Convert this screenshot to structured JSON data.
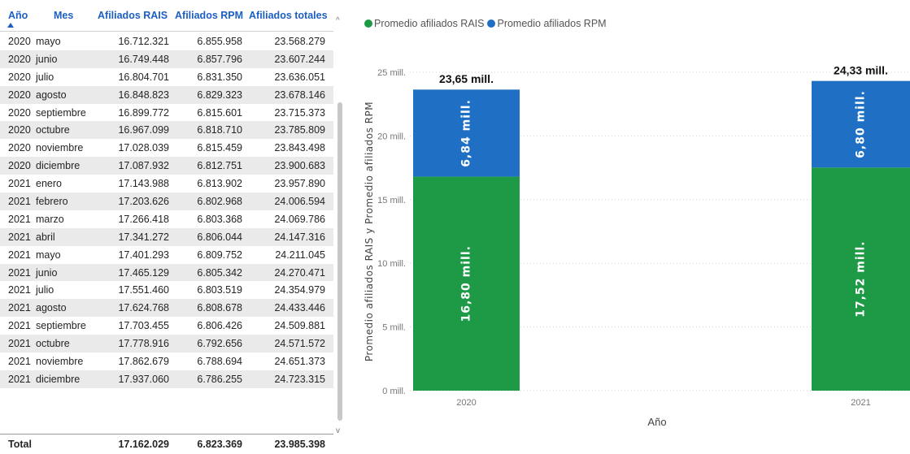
{
  "table": {
    "headers": {
      "year": "Año",
      "month": "Mes",
      "rais": "Afiliados RAIS",
      "rpm": "Afiliados RPM",
      "total": "Afiliados totales"
    },
    "rows": [
      {
        "year": "2020",
        "month": "mayo",
        "rais": "16.712.321",
        "rpm": "6.855.958",
        "total": "23.568.279"
      },
      {
        "year": "2020",
        "month": "junio",
        "rais": "16.749.448",
        "rpm": "6.857.796",
        "total": "23.607.244"
      },
      {
        "year": "2020",
        "month": "julio",
        "rais": "16.804.701",
        "rpm": "6.831.350",
        "total": "23.636.051"
      },
      {
        "year": "2020",
        "month": "agosto",
        "rais": "16.848.823",
        "rpm": "6.829.323",
        "total": "23.678.146"
      },
      {
        "year": "2020",
        "month": "septiembre",
        "rais": "16.899.772",
        "rpm": "6.815.601",
        "total": "23.715.373"
      },
      {
        "year": "2020",
        "month": "octubre",
        "rais": "16.967.099",
        "rpm": "6.818.710",
        "total": "23.785.809"
      },
      {
        "year": "2020",
        "month": "noviembre",
        "rais": "17.028.039",
        "rpm": "6.815.459",
        "total": "23.843.498"
      },
      {
        "year": "2020",
        "month": "diciembre",
        "rais": "17.087.932",
        "rpm": "6.812.751",
        "total": "23.900.683"
      },
      {
        "year": "2021",
        "month": "enero",
        "rais": "17.143.988",
        "rpm": "6.813.902",
        "total": "23.957.890"
      },
      {
        "year": "2021",
        "month": "febrero",
        "rais": "17.203.626",
        "rpm": "6.802.968",
        "total": "24.006.594"
      },
      {
        "year": "2021",
        "month": "marzo",
        "rais": "17.266.418",
        "rpm": "6.803.368",
        "total": "24.069.786"
      },
      {
        "year": "2021",
        "month": "abril",
        "rais": "17.341.272",
        "rpm": "6.806.044",
        "total": "24.147.316"
      },
      {
        "year": "2021",
        "month": "mayo",
        "rais": "17.401.293",
        "rpm": "6.809.752",
        "total": "24.211.045"
      },
      {
        "year": "2021",
        "month": "junio",
        "rais": "17.465.129",
        "rpm": "6.805.342",
        "total": "24.270.471"
      },
      {
        "year": "2021",
        "month": "julio",
        "rais": "17.551.460",
        "rpm": "6.803.519",
        "total": "24.354.979"
      },
      {
        "year": "2021",
        "month": "agosto",
        "rais": "17.624.768",
        "rpm": "6.808.678",
        "total": "24.433.446"
      },
      {
        "year": "2021",
        "month": "septiembre",
        "rais": "17.703.455",
        "rpm": "6.806.426",
        "total": "24.509.881"
      },
      {
        "year": "2021",
        "month": "octubre",
        "rais": "17.778.916",
        "rpm": "6.792.656",
        "total": "24.571.572"
      },
      {
        "year": "2021",
        "month": "noviembre",
        "rais": "17.862.679",
        "rpm": "6.788.694",
        "total": "24.651.373"
      },
      {
        "year": "2021",
        "month": "diciembre",
        "rais": "17.937.060",
        "rpm": "6.786.255",
        "total": "24.723.315"
      }
    ],
    "total_row": {
      "label": "Total",
      "rais": "17.162.029",
      "rpm": "6.823.369",
      "total": "23.985.398"
    },
    "sort_icon": "sort-ascending-icon",
    "header_color": "#1c5fc4"
  },
  "chart_data": {
    "type": "bar",
    "stacked": true,
    "categories": [
      "2020",
      "2021"
    ],
    "series": [
      {
        "name": "Promedio afiliados RAIS",
        "color": "#1e9a47",
        "values": [
          16.8,
          17.52
        ],
        "labels": [
          "16,80 mill.",
          "17,52 mill."
        ]
      },
      {
        "name": "Promedio afiliados RPM",
        "color": "#1f6fc5",
        "values": [
          6.84,
          6.8
        ],
        "labels": [
          "6,84 mill.",
          "6,80 mill."
        ]
      }
    ],
    "totals": [
      23.65,
      24.33
    ],
    "total_labels": [
      "23,65 mill.",
      "24,33 mill."
    ],
    "xlabel": "Año",
    "ylabel": "Promedio afiliados RAIS y Promedio afiliados RPM",
    "ylim": [
      0,
      25
    ],
    "yticks": [
      0,
      5,
      10,
      15,
      20,
      25
    ],
    "ytick_labels": [
      "0 mill.",
      "5 mill.",
      "10 mill.",
      "15 mill.",
      "20 mill.",
      "25 mill."
    ],
    "grid": true,
    "legend_position": "top-left"
  }
}
